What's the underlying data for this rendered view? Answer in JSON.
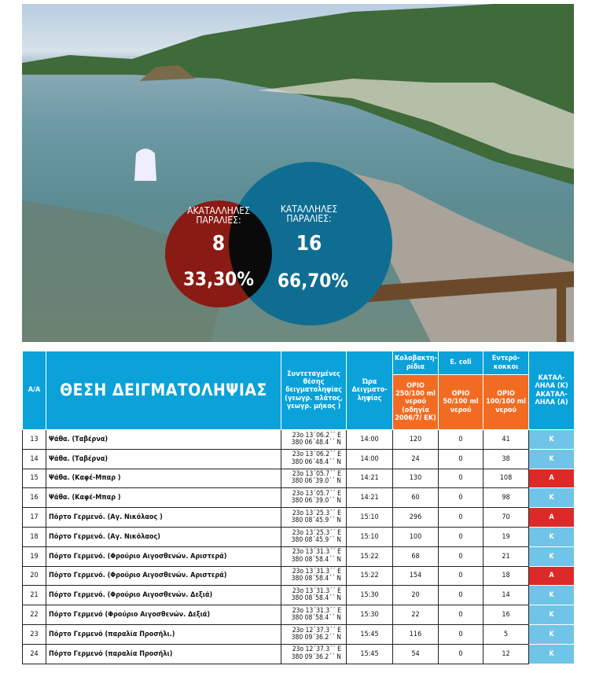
{
  "infographic": {
    "unsuitable": {
      "label": "ΑΚΑΤΑΛΛΗΛΕΣ ΠΑΡΑΛΙΕΣ:",
      "count": "8",
      "percent": "33,30%",
      "color": "#8a1a14"
    },
    "suitable": {
      "label": "ΚΑΤΑΛΛΗΛΕΣ ΠΑΡΑΛΙΕΣ:",
      "count": "16",
      "percent": "66,70%",
      "color": "#0f6d92"
    }
  },
  "table": {
    "headers": {
      "aa": "Α/Α",
      "location": "ΘΕΣΗ ΔΕΙΓΜΑΤΟΛΗΨΙΑΣ",
      "coords": "Συντεταγμένες θέσης δειγματοληψίας (γεωγρ. πλάτος, γεωγρ. μήκος )",
      "time": "Ώρα Δειγματο-ληψίας",
      "coliforms": "Κολοβακτη-ρίδια",
      "ecoli": "E. coli",
      "enterococci": "Εντερό-κοκκοι",
      "result": "ΚΑΤΑΛ-ΛΗΛΑ (Κ) ΑΚΑΤΑΛ-ΛΗΛΑ (Α)",
      "limit_coliforms": "ΟΡΙΟ 250/100 ml νερού (οδηγία 2006/7/ ΕΚ)",
      "limit_ecoli": "ΟΡΙΟ 50/100 ml νερού",
      "limit_enterococci": "ΟΡΙΟ 100/100 ml νερού"
    },
    "colors": {
      "header": "#0ba1d9",
      "limit": "#f26b23",
      "K": "#6fc4e8",
      "A": "#dc2a28"
    },
    "rows": [
      {
        "aa": "13",
        "name": "Ψάθα. (Ταβέρνα)",
        "lon": "23ο 13΄06.2΄΄ E",
        "lat": "380 06΄48.4΄΄ N",
        "time": "14:00",
        "coli": "120",
        "ecoli": "0",
        "entero": "41",
        "result": "K"
      },
      {
        "aa": "14",
        "name": "Ψάθα. (Ταβέρνα)",
        "lon": "23ο 13΄06.2΄΄ E",
        "lat": "380 06΄48.4΄΄ N",
        "time": "14:00",
        "coli": "24",
        "ecoli": "0",
        "entero": "38",
        "result": "K"
      },
      {
        "aa": "15",
        "name": "Ψάθα. (Καφέ-Μπαρ )",
        "lon": "23ο 13΄05.7΄΄ E",
        "lat": "380 06΄39.0΄΄ N",
        "time": "14:21",
        "coli": "130",
        "ecoli": "0",
        "entero": "108",
        "result": "A"
      },
      {
        "aa": "16",
        "name": "Ψάθα. (Καφέ-Μπαρ )",
        "lon": "23ο 13΄05.7΄΄ E",
        "lat": "380 06΄39.0΄΄ N",
        "time": "14:21",
        "coli": "60",
        "ecoli": "0",
        "entero": "98",
        "result": "K"
      },
      {
        "aa": "17",
        "name": "Πόρτο Γερμενό. (Αγ. Νικόλαος )",
        "lon": "23ο 13΄25.3΄΄ E",
        "lat": "380 08΄45.9΄΄ N",
        "time": "15:10",
        "coli": "296",
        "ecoli": "0",
        "entero": "70",
        "result": "A"
      },
      {
        "aa": "18",
        "name": "Πόρτο Γερμενό. (Αγ. Νικόλαος)",
        "lon": "23ο 13΄25.3΄΄ E",
        "lat": "380 08΄45.9΄΄ N",
        "time": "15:10",
        "coli": "100",
        "ecoli": "0",
        "entero": "19",
        "result": "K"
      },
      {
        "aa": "19",
        "name": "Πόρτο Γερμενό. (Φρούριο Αιγοσθενών. Αριστερά)",
        "lon": "23ο 13΄31.3΄΄ E",
        "lat": "380 08΄58.4΄΄ N",
        "time": "15:22",
        "coli": "68",
        "ecoli": "0",
        "entero": "21",
        "result": "K"
      },
      {
        "aa": "20",
        "name": "Πόρτο Γερμενό. (Φρούριο Αιγοσθενών. Αριστερά)",
        "lon": "23ο 13΄31.3΄΄ E",
        "lat": "380 08΄58.4΄΄ N",
        "time": "15:22",
        "coli": "154",
        "ecoli": "0",
        "entero": "18",
        "result": "A"
      },
      {
        "aa": "21",
        "name": "Πόρτο Γερμενό. (Φρούριο Αιγοσθενών. Δεξιά)",
        "lon": "23ο 13΄31.3΄΄ E",
        "lat": "380 08΄58.4΄΄ N",
        "time": "15:30",
        "coli": "20",
        "ecoli": "0",
        "entero": "14",
        "result": "K"
      },
      {
        "aa": "22",
        "name": "Πόρτο Γερμενό (Φρούριο Αιγοσθενών. Δεξιά)",
        "lon": "23ο 13΄31.3΄΄ E",
        "lat": "380 08΄58.4΄΄ N",
        "time": "15:30",
        "coli": "22",
        "ecoli": "0",
        "entero": "16",
        "result": "K"
      },
      {
        "aa": "23",
        "name": "Πόρτο Γερμενό (παραλία Προσήλι.)",
        "lon": "23ο 12΄37.3΄΄ E",
        "lat": "380 09΄36.2΄΄ N",
        "time": "15:45",
        "coli": "116",
        "ecoli": "0",
        "entero": "5",
        "result": "K"
      },
      {
        "aa": "24",
        "name": "Πόρτο Γερμενό (παραλία Προσήλι)",
        "lon": "23ο 12΄37.3΄΄ E",
        "lat": "380 09΄36.2΄΄ N",
        "time": "15:45",
        "coli": "54",
        "ecoli": "0",
        "entero": "12",
        "result": "K"
      }
    ]
  }
}
